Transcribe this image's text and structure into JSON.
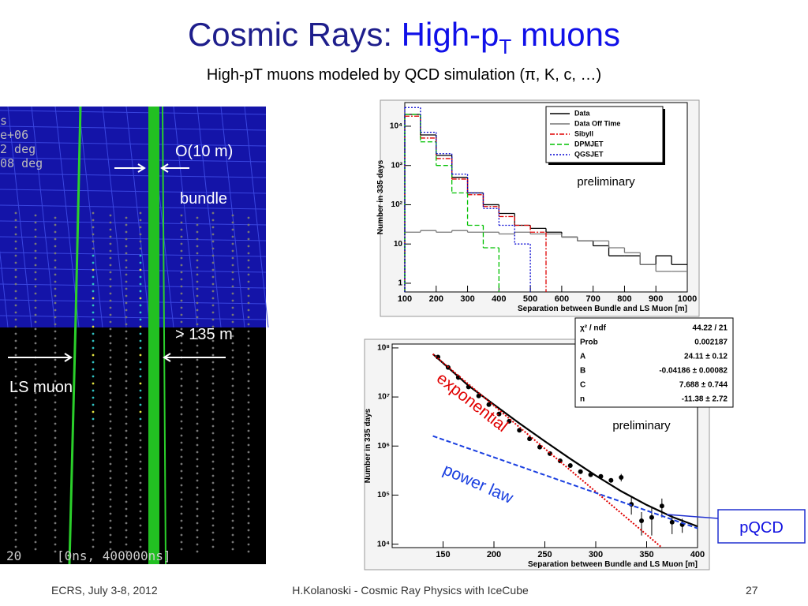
{
  "slide": {
    "title_parts": [
      "Cosmic Rays: ",
      "High-p",
      "T",
      " muons"
    ],
    "subtitle": "High-pT muons modeled by QCD simulation (π, K, c, …)",
    "footer_left": "ECRS, July 3-8, 2012",
    "footer_center": "H.Kolanoski - Cosmic Ray Physics with IceCube",
    "page_number": "27"
  },
  "event_display": {
    "overlay_text": [
      "s",
      "e+06",
      "2 deg",
      "08 deg"
    ],
    "bottom_left": "20",
    "time_range": "[0ns, 400000ns]",
    "labels": {
      "bundle_width": "O(10 m)",
      "bundle": "bundle",
      "separation": "> 135 m",
      "ls_muon": "LS muon"
    }
  },
  "fit_box": {
    "rows": [
      [
        "χ² / ndf",
        "44.22 / 21"
      ],
      [
        "Prob",
        "0.002187"
      ],
      [
        "A",
        "24.11 ± 0.12"
      ],
      [
        "B",
        "-0.04186 ± 0.00082"
      ],
      [
        "C",
        "7.688 ± 0.744"
      ],
      [
        "n",
        "-11.38 ± 2.72"
      ]
    ]
  },
  "pqcd_label": "pQCD",
  "chart_data": [
    {
      "type": "histogram",
      "xlabel": "Separation between Bundle and LS Muon [m]",
      "ylabel": "Number in 335 days",
      "annotation": "preliminary",
      "log_y": true,
      "legend": "top-right",
      "bins": [
        100,
        150,
        200,
        250,
        300,
        350,
        400,
        450,
        500,
        550,
        600,
        650,
        700,
        750,
        800,
        850,
        900,
        950,
        1000
      ],
      "xlim": [
        100,
        1000
      ],
      "xticks": [
        100,
        200,
        300,
        400,
        500,
        600,
        700,
        800,
        900,
        1000
      ],
      "ylim": [
        0.6,
        40000
      ],
      "yticks": [
        1,
        10,
        {
          "value": 100,
          "label": "10²"
        },
        {
          "value": 1000,
          "label": "10³"
        },
        {
          "value": 10000,
          "label": "10⁴"
        }
      ],
      "series": [
        {
          "name": "Data",
          "color": "#000000",
          "line_style": "solid",
          "values": [
            20000,
            6000,
            1800,
            500,
            200,
            100,
            60,
            30,
            25,
            20,
            15,
            12,
            9,
            5,
            5,
            3,
            5,
            3
          ]
        },
        {
          "name": "Data Off Time",
          "color": "#777777",
          "line_style": "solid",
          "values": [
            20,
            22,
            20,
            22,
            20,
            20,
            18,
            20,
            18,
            18,
            15,
            12,
            12,
            8,
            6,
            3,
            2,
            2
          ]
        },
        {
          "name": "Sibyll",
          "color": "#e00000",
          "line_style": "dashdot",
          "values": [
            18000,
            5000,
            1500,
            450,
            180,
            90,
            50,
            30,
            20,
            null,
            null,
            null,
            null,
            null,
            null,
            null,
            null,
            null
          ]
        },
        {
          "name": "DPMJET",
          "color": "#00c000",
          "line_style": "dashed",
          "values": [
            20000,
            4000,
            1000,
            200,
            30,
            8,
            null,
            null,
            null,
            null,
            null,
            null,
            null,
            null,
            null,
            null,
            null,
            null
          ]
        },
        {
          "name": "QGSJET",
          "color": "#0000d0",
          "line_style": "dotted",
          "values": [
            30000,
            7000,
            2000,
            600,
            200,
            80,
            30,
            10,
            null,
            null,
            null,
            null,
            null,
            null,
            null,
            null,
            null,
            null
          ]
        }
      ]
    },
    {
      "type": "scatter",
      "xlabel": "Separation between Bundle and LS Muon [m]",
      "ylabel": "Number in 335 days",
      "annotation": "preliminary",
      "log_y": true,
      "xlim": [
        100,
        400
      ],
      "xticks": [
        150,
        200,
        250,
        300,
        350,
        400
      ],
      "ylim": [
        8500,
        120000000
      ],
      "yticks": [
        {
          "value": 10000,
          "label": "10⁴"
        },
        {
          "value": 100000,
          "label": "10⁵"
        },
        {
          "value": 1000000,
          "label": "10⁶"
        },
        {
          "value": 10000000,
          "label": "10⁷"
        },
        {
          "value": 100000000,
          "label": "10⁸"
        }
      ],
      "series": [
        {
          "kind": "points",
          "color": "#000000",
          "x": [
            145,
            155,
            165,
            175,
            185,
            195,
            205,
            215,
            225,
            235,
            245,
            255,
            265,
            275,
            285,
            295,
            305,
            315,
            325,
            335,
            345,
            355,
            365,
            375,
            385
          ],
          "values": [
            65000000,
            40000000,
            25000000,
            16000000,
            10500000,
            7000000,
            4500000,
            3200000,
            2100000,
            1400000,
            950000,
            700000,
            500000,
            400000,
            300000,
            260000,
            240000,
            200000,
            230000,
            65000,
            30000,
            35000,
            60000,
            28000,
            25000
          ],
          "errors": [
            2000000,
            1500000,
            1000000,
            600000,
            400000,
            250000,
            180000,
            120000,
            80000,
            50000,
            40000,
            30000,
            20000,
            18000,
            15000,
            13000,
            20000,
            15000,
            40000,
            25000,
            15000,
            20000,
            25000,
            12000,
            8000
          ]
        },
        {
          "kind": "line",
          "color": "#000000",
          "line_style": "solid",
          "x": [
            140,
            175,
            200,
            225,
            250,
            275,
            300,
            325,
            350,
            375,
            400
          ],
          "values": [
            75000000,
            17000000,
            7000000,
            2900000,
            1250000,
            550000,
            250000,
            120000,
            63000,
            36000,
            23000
          ]
        },
        {
          "kind": "line",
          "name": "exponential",
          "color": "#e00000",
          "line_style": "dotted",
          "x": [
            140,
            365
          ],
          "values": [
            75000000,
            8500
          ]
        },
        {
          "kind": "line",
          "name": "power law",
          "color": "#1a3fe0",
          "line_style": "dashed",
          "x": [
            140,
            400
          ],
          "values": [
            1600000,
            21000
          ]
        }
      ]
    }
  ]
}
